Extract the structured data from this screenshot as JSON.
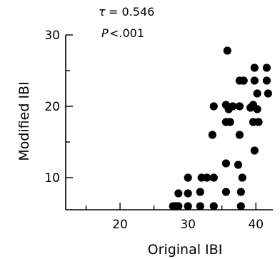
{
  "chart_data": {
    "type": "scatter",
    "title": "",
    "xlabel": "Original IBI",
    "ylabel": "Modified IBI",
    "xlim": [
      12,
      42.5
    ],
    "ylim": [
      5.5,
      30
    ],
    "xticks_major": [
      20,
      30,
      40
    ],
    "xticks_minor": [
      15,
      25,
      35
    ],
    "yticks_major": [
      10,
      20,
      30
    ],
    "yticks_minor": [
      15,
      25
    ],
    "grid": false,
    "annotations": {
      "tau_symbol": "τ",
      "tau_value": "= 0.546",
      "p_symbol": "P",
      "p_value": "<.001"
    },
    "series": [
      {
        "points": [
          {
            "x": 27.8,
            "y": 6.0
          },
          {
            "x": 28.2,
            "y": 6.0
          },
          {
            "x": 28.6,
            "y": 6.0
          },
          {
            "x": 28.6,
            "y": 7.8
          },
          {
            "x": 30.0,
            "y": 6.0
          },
          {
            "x": 30.0,
            "y": 7.8
          },
          {
            "x": 30.0,
            "y": 10.0
          },
          {
            "x": 31.8,
            "y": 6.0
          },
          {
            "x": 31.8,
            "y": 8.0
          },
          {
            "x": 32.0,
            "y": 10.0
          },
          {
            "x": 32.8,
            "y": 10.0
          },
          {
            "x": 33.8,
            "y": 10.0
          },
          {
            "x": 33.8,
            "y": 6.0
          },
          {
            "x": 33.6,
            "y": 16.0
          },
          {
            "x": 33.8,
            "y": 20.0
          },
          {
            "x": 35.6,
            "y": 8.0
          },
          {
            "x": 35.6,
            "y": 12.0
          },
          {
            "x": 35.6,
            "y": 17.8
          },
          {
            "x": 36.0,
            "y": 19.6
          },
          {
            "x": 35.6,
            "y": 20.2
          },
          {
            "x": 36.2,
            "y": 17.8
          },
          {
            "x": 36.6,
            "y": 20.0
          },
          {
            "x": 35.8,
            "y": 27.8
          },
          {
            "x": 37.4,
            "y": 11.8
          },
          {
            "x": 37.6,
            "y": 16.0
          },
          {
            "x": 37.6,
            "y": 20.0
          },
          {
            "x": 37.6,
            "y": 23.6
          },
          {
            "x": 37.8,
            "y": 8.0
          },
          {
            "x": 38.0,
            "y": 10.0
          },
          {
            "x": 38.2,
            "y": 23.6
          },
          {
            "x": 38.2,
            "y": 23.6
          },
          {
            "x": 37.8,
            "y": 6.0
          },
          {
            "x": 39.2,
            "y": 19.8
          },
          {
            "x": 39.6,
            "y": 17.8
          },
          {
            "x": 39.6,
            "y": 20.2
          },
          {
            "x": 39.8,
            "y": 23.6
          },
          {
            "x": 39.8,
            "y": 25.4
          },
          {
            "x": 39.8,
            "y": 13.8
          },
          {
            "x": 40.2,
            "y": 21.8
          },
          {
            "x": 40.2,
            "y": 19.6
          },
          {
            "x": 40.4,
            "y": 17.8
          },
          {
            "x": 41.6,
            "y": 25.4
          },
          {
            "x": 41.6,
            "y": 23.6
          },
          {
            "x": 41.8,
            "y": 21.8
          }
        ]
      }
    ]
  }
}
